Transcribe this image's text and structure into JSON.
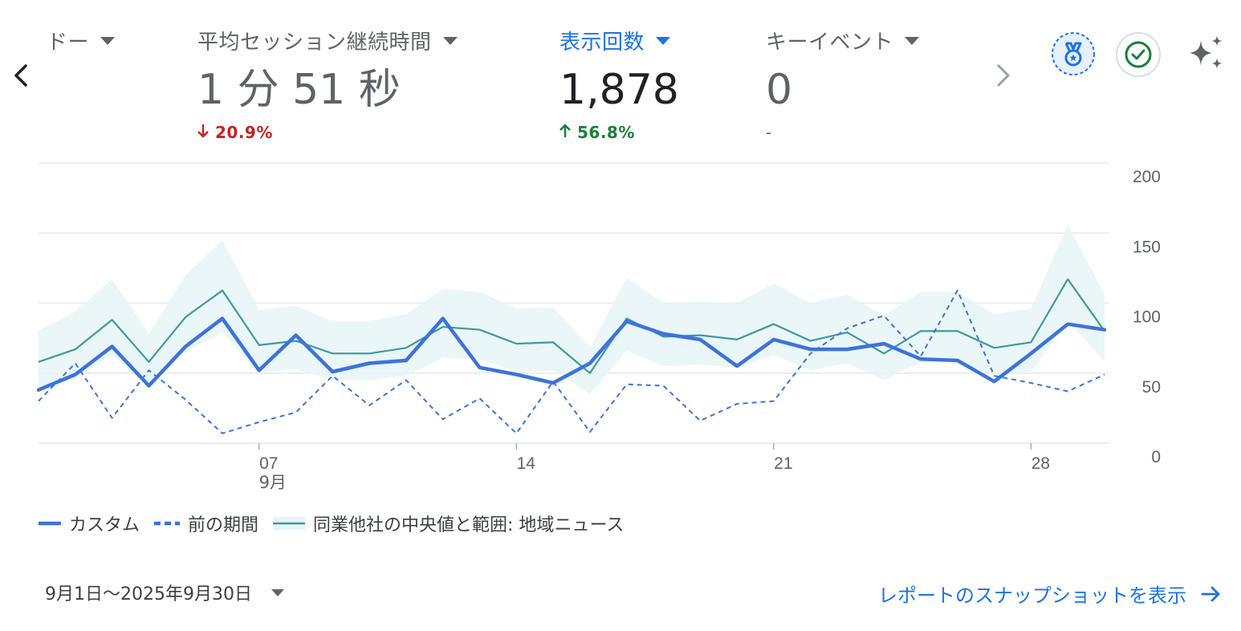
{
  "metrics": [
    {
      "label": "ドー",
      "value": "",
      "change": "",
      "direction": "none",
      "active": false
    },
    {
      "label": "平均セッション継続時間",
      "value": "1 分 51 秒",
      "change": "20.9%",
      "direction": "down",
      "active": false
    },
    {
      "label": "表示回数",
      "value": "1,878",
      "change": "56.8%",
      "direction": "up",
      "active": true
    },
    {
      "label": "キーイベント",
      "value": "0",
      "change": "-",
      "direction": "none",
      "active": false
    }
  ],
  "icons": {
    "prev": "chevron-left-icon",
    "next": "chevron-right-icon",
    "badge": "medal-badge-icon",
    "check": "check-circle-icon",
    "sparkle": "sparkle-icon"
  },
  "colors": {
    "accent": "#1a73e8",
    "custom_series": "#3c73db",
    "benchmark_line": "#3d9aa0",
    "benchmark_band": "#e6f4f7",
    "down": "#c5221f",
    "up": "#188038"
  },
  "chart_data": {
    "type": "line",
    "x": [
      1,
      2,
      3,
      4,
      5,
      6,
      7,
      8,
      9,
      10,
      11,
      12,
      13,
      14,
      15,
      16,
      17,
      18,
      19,
      20,
      21,
      22,
      23,
      24,
      25,
      26,
      27,
      28,
      29,
      30
    ],
    "x_tick_labels": [
      {
        "day": 7,
        "label": "07",
        "sublabel": "9月"
      },
      {
        "day": 14,
        "label": "14",
        "sublabel": ""
      },
      {
        "day": 21,
        "label": "21",
        "sublabel": ""
      },
      {
        "day": 28,
        "label": "28",
        "sublabel": ""
      }
    ],
    "y_ticks": [
      0,
      50,
      100,
      150,
      200
    ],
    "ylim": [
      0,
      200
    ],
    "y_axis_position": "right",
    "grid": true,
    "legend_position": "bottom-left",
    "series": [
      {
        "name": "カスタム",
        "style": "solid-thick",
        "values": [
          38,
          49,
          69,
          41,
          69,
          89,
          52,
          77,
          51,
          57,
          59,
          89,
          54,
          49,
          43,
          57,
          87,
          78,
          74,
          55,
          74,
          67,
          67,
          71,
          60,
          59,
          44,
          64,
          85,
          81
        ]
      },
      {
        "name": "前の期間",
        "style": "dashed",
        "values": [
          30,
          57,
          18,
          52,
          31,
          7,
          15,
          22,
          48,
          27,
          45,
          17,
          32,
          7,
          44,
          8,
          42,
          41,
          16,
          28,
          30,
          64,
          82,
          91,
          62,
          109,
          48,
          43,
          37,
          49
        ]
      },
      {
        "name": "同業他社の中央値と範囲: 地域ニュース",
        "style": "line-band",
        "values": [
          58,
          67,
          88,
          58,
          90,
          109,
          70,
          73,
          64,
          64,
          68,
          83,
          81,
          71,
          72,
          50,
          89,
          76,
          77,
          74,
          85,
          73,
          79,
          64,
          80,
          80,
          68,
          72,
          117,
          80
        ],
        "upper": [
          80,
          94,
          117,
          78,
          120,
          145,
          95,
          98,
          87,
          87,
          92,
          110,
          108,
          96,
          97,
          68,
          118,
          100,
          101,
          100,
          114,
          100,
          106,
          91,
          108,
          108,
          92,
          96,
          156,
          106
        ],
        "lower": [
          40,
          46,
          63,
          40,
          65,
          79,
          50,
          53,
          45,
          45,
          48,
          61,
          60,
          51,
          52,
          35,
          66,
          55,
          56,
          54,
          63,
          52,
          57,
          45,
          58,
          58,
          48,
          51,
          88,
          58
        ]
      }
    ]
  },
  "legend": [
    {
      "label": "カスタム",
      "kind": "solid"
    },
    {
      "label": "前の期間",
      "kind": "dashed"
    },
    {
      "label": "同業他社の中央値と範囲: 地域ニュース",
      "kind": "band"
    }
  ],
  "footer": {
    "date_range": "9月1日〜2025年9月30日",
    "snapshot_link": "レポートのスナップショットを表示"
  }
}
